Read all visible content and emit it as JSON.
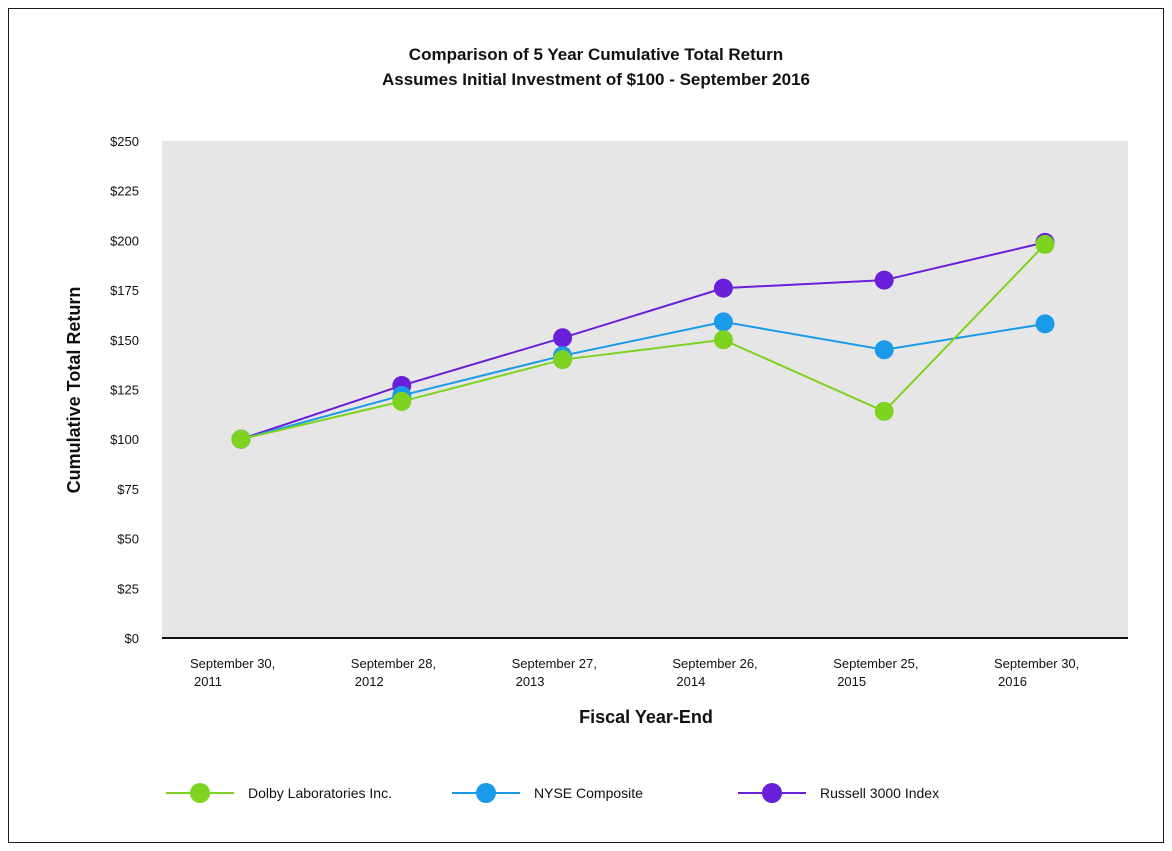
{
  "chart_data": {
    "type": "line",
    "title": "Comparison of 5 Year Cumulative Total Return",
    "subtitle": "Assumes Initial Investment of $100 - September 2016",
    "xlabel": "Fiscal Year-End",
    "ylabel": "Cumulative Total Return",
    "ylim": [
      0,
      250
    ],
    "yticks": [
      0,
      25,
      50,
      75,
      100,
      125,
      150,
      175,
      200,
      225,
      250
    ],
    "ytick_labels": [
      "$0",
      "$25",
      "$50",
      "$75",
      "$100",
      "$125",
      "$150",
      "$175",
      "$200",
      "$225",
      "$250"
    ],
    "categories": [
      [
        "September 30,",
        "2011"
      ],
      [
        "September 28,",
        "2012"
      ],
      [
        "September 27,",
        "2013"
      ],
      [
        "September 26,",
        "2014"
      ],
      [
        "September 25,",
        "2015"
      ],
      [
        "September 30,",
        "2016"
      ]
    ],
    "grid": false,
    "legend_position": "bottom",
    "series": [
      {
        "name": "Russell 3000 Index",
        "color": "#6a1fd8",
        "values": [
          100,
          127,
          151,
          176,
          180,
          199
        ]
      },
      {
        "name": "NYSE Composite",
        "color": "#1a9ae8",
        "values": [
          100,
          122,
          142,
          159,
          145,
          158
        ]
      },
      {
        "name": "Dolby Laboratories Inc.",
        "color": "#7dd320",
        "values": [
          100,
          119,
          140,
          150,
          114,
          198
        ]
      }
    ],
    "legend_order": [
      "Dolby Laboratories Inc.",
      "NYSE Composite",
      "Russell 3000 Index"
    ],
    "plot_background": "#e6e6e6"
  }
}
